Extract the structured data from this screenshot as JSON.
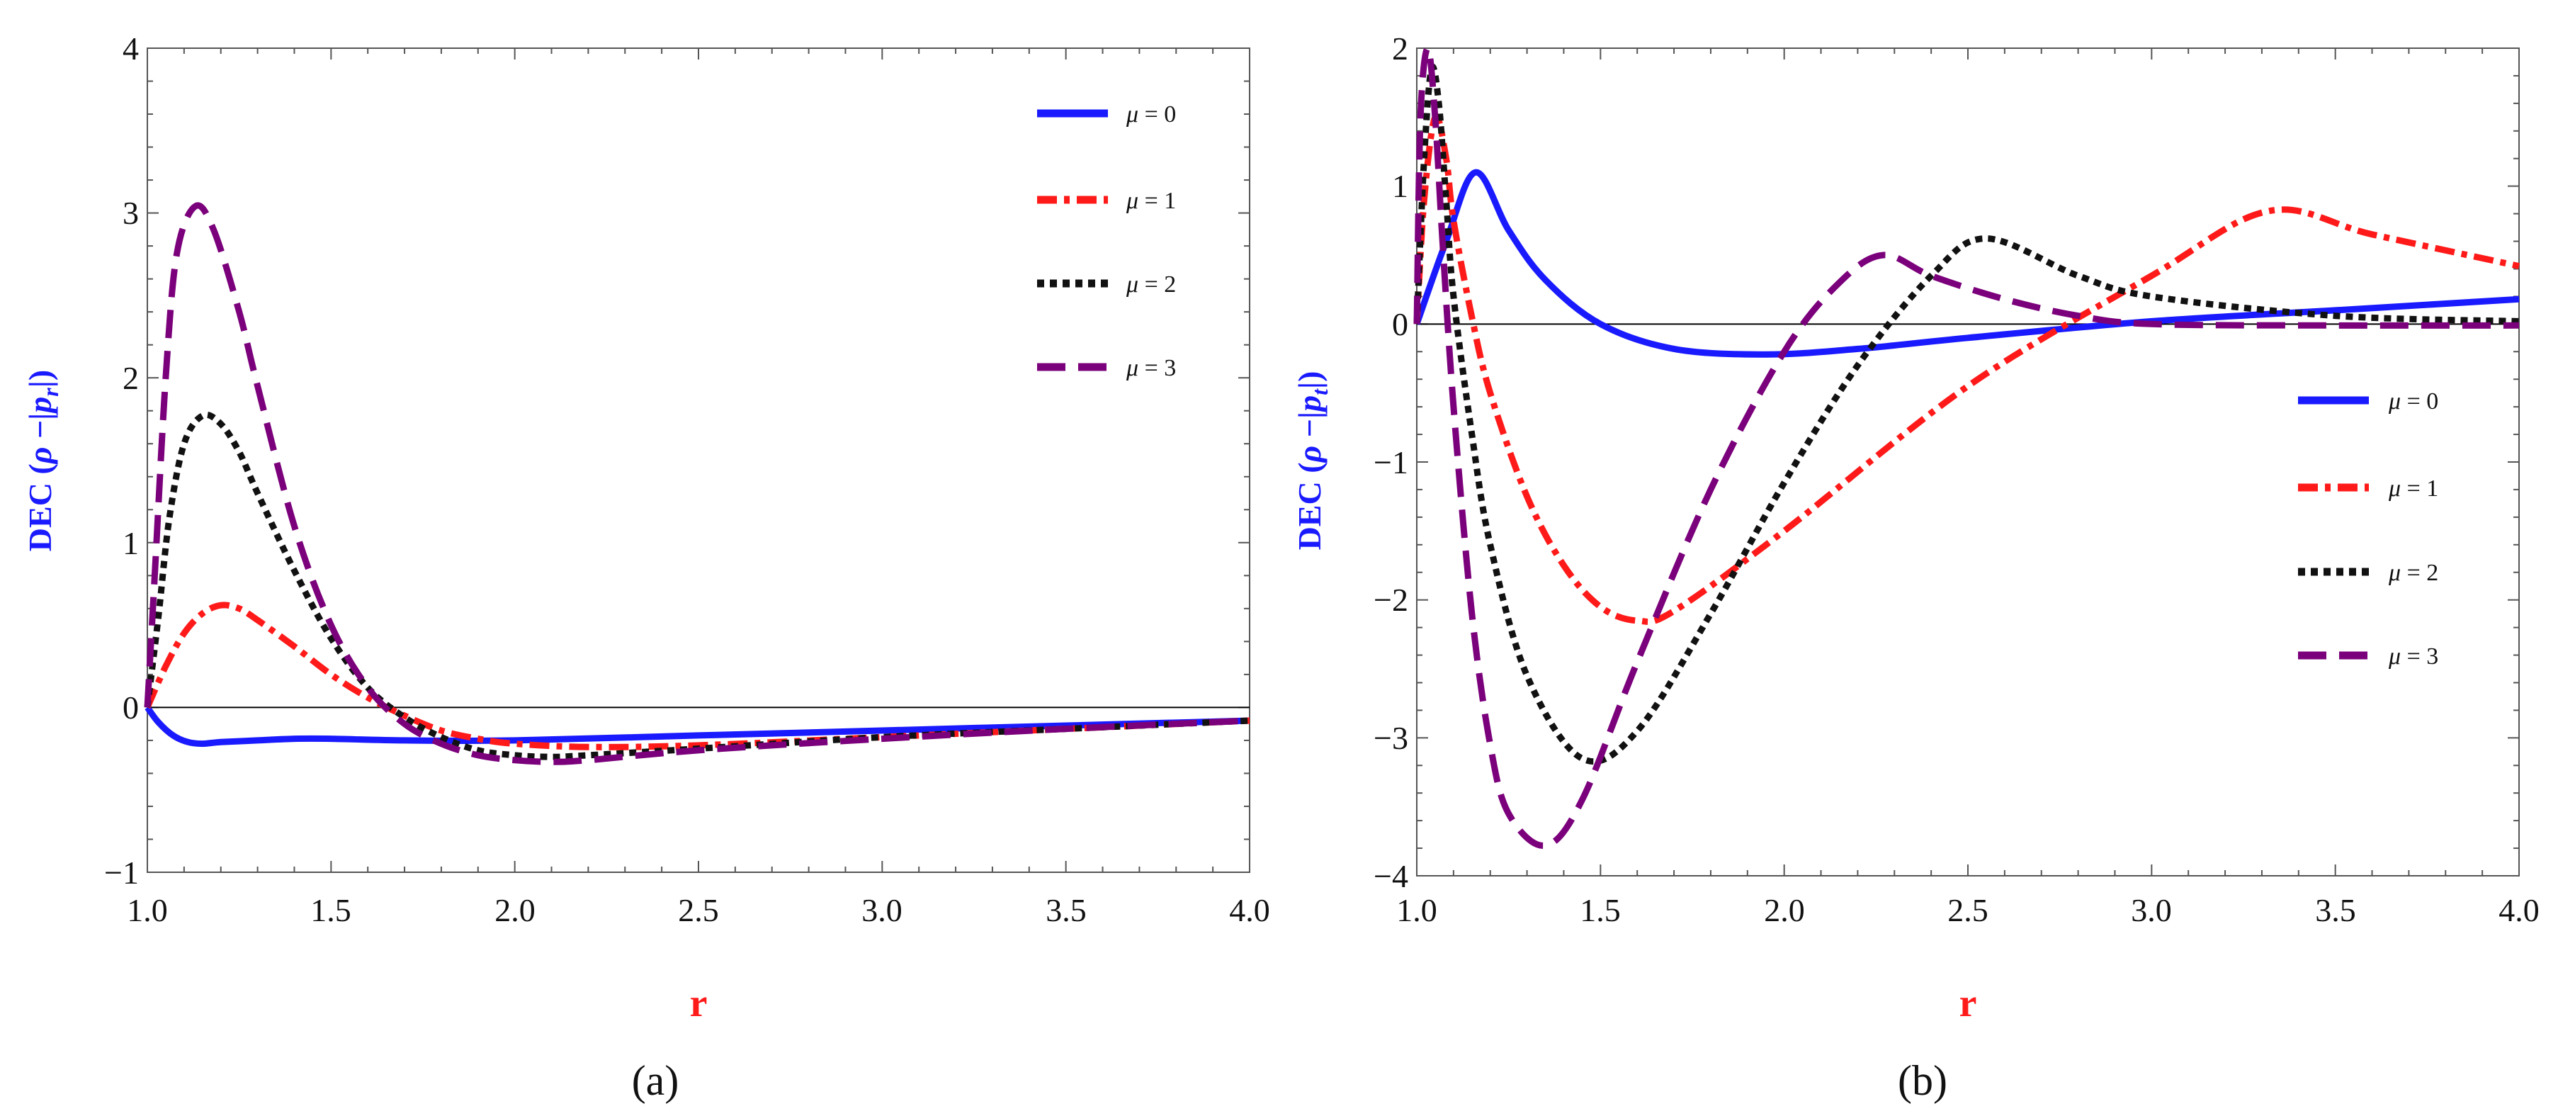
{
  "chart_data": [
    {
      "type": "line",
      "panel_label": "(a)",
      "xlabel": "r",
      "ylabel": "DEC (ρ −|pr|)",
      "ylabel_parts": {
        "prefix": "DEC (",
        "rho": "ρ",
        "mid": " −|",
        "p": "p",
        "sub": "r",
        "suffix": "|)"
      },
      "xlim": [
        1.0,
        4.0
      ],
      "ylim": [
        -1,
        4
      ],
      "x_ticks": [
        "1.0",
        "1.5",
        "2.0",
        "2.5",
        "3.0",
        "3.5",
        "4.0"
      ],
      "y_ticks": [
        "−1",
        "0",
        "1",
        "2",
        "3",
        "4"
      ],
      "legend_position": "top-right",
      "series": [
        {
          "name": "μ = 0",
          "mu": "μ",
          "eq": " = 0",
          "color": "#1a1aff",
          "dash": "solid",
          "x": [
            1.0,
            1.03,
            1.07,
            1.11,
            1.15,
            1.2,
            1.3,
            1.4,
            1.5,
            1.7,
            2.0,
            2.5,
            3.0,
            3.5,
            4.0
          ],
          "y": [
            0.0,
            -0.09,
            -0.17,
            -0.21,
            -0.22,
            -0.21,
            -0.2,
            -0.19,
            -0.19,
            -0.2,
            -0.2,
            -0.17,
            -0.14,
            -0.11,
            -0.08
          ]
        },
        {
          "name": "μ = 1",
          "mu": "μ",
          "eq": " = 1",
          "color": "#ff1a1a",
          "dash": "dashdot",
          "x": [
            1.0,
            1.05,
            1.1,
            1.15,
            1.2,
            1.25,
            1.3,
            1.4,
            1.5,
            1.6,
            1.7,
            1.8,
            1.9,
            2.0,
            2.2,
            2.5,
            3.0,
            3.5,
            4.0
          ],
          "y": [
            0.0,
            0.25,
            0.45,
            0.57,
            0.62,
            0.6,
            0.53,
            0.37,
            0.2,
            0.06,
            -0.05,
            -0.14,
            -0.19,
            -0.22,
            -0.24,
            -0.23,
            -0.18,
            -0.13,
            -0.08
          ]
        },
        {
          "name": "μ = 2",
          "mu": "μ",
          "eq": " = 2",
          "color": "#111111",
          "dash": "dotted",
          "x": [
            1.0,
            1.03,
            1.06,
            1.1,
            1.15,
            1.2,
            1.25,
            1.3,
            1.4,
            1.5,
            1.6,
            1.7,
            1.8,
            1.9,
            2.0,
            2.1,
            2.2,
            2.5,
            3.0,
            3.5,
            4.0
          ],
          "y": [
            0.0,
            0.55,
            1.15,
            1.6,
            1.77,
            1.72,
            1.55,
            1.3,
            0.83,
            0.42,
            0.12,
            -0.06,
            -0.18,
            -0.26,
            -0.29,
            -0.3,
            -0.29,
            -0.25,
            -0.18,
            -0.13,
            -0.08
          ]
        },
        {
          "name": "μ = 3",
          "mu": "μ",
          "eq": " = 3",
          "color": "#7b007b",
          "dash": "dashed",
          "x": [
            1.0,
            1.02,
            1.05,
            1.08,
            1.13,
            1.18,
            1.25,
            1.3,
            1.4,
            1.5,
            1.6,
            1.7,
            1.8,
            1.9,
            2.0,
            2.1,
            2.2,
            2.5,
            3.0,
            3.5,
            4.0
          ],
          "y": [
            0.0,
            0.8,
            2.0,
            2.75,
            3.04,
            2.9,
            2.4,
            1.95,
            1.1,
            0.5,
            0.12,
            -0.1,
            -0.22,
            -0.29,
            -0.32,
            -0.33,
            -0.32,
            -0.26,
            -0.19,
            -0.13,
            -0.08
          ]
        }
      ]
    },
    {
      "type": "line",
      "panel_label": "(b)",
      "xlabel": "r",
      "ylabel": "DEC (ρ −|pt|)",
      "ylabel_parts": {
        "prefix": "DEC (",
        "rho": "ρ",
        "mid": " −|",
        "p": "p",
        "sub": "t",
        "suffix": "|)"
      },
      "xlim": [
        1.0,
        4.0
      ],
      "ylim": [
        -4,
        2
      ],
      "x_ticks": [
        "1.0",
        "1.5",
        "2.0",
        "2.5",
        "3.0",
        "3.5",
        "4.0"
      ],
      "y_ticks": [
        "−4",
        "−3",
        "−2",
        "−1",
        "0",
        "1",
        "2"
      ],
      "legend_position": "center-right",
      "series": [
        {
          "name": "μ = 0",
          "mu": "μ",
          "eq": " = 0",
          "color": "#1a1aff",
          "dash": "solid",
          "x": [
            1.0,
            1.08,
            1.16,
            1.25,
            1.35,
            1.5,
            1.7,
            1.95,
            2.2,
            2.5,
            3.0,
            3.5,
            4.0
          ],
          "y": [
            0.0,
            0.6,
            1.1,
            0.68,
            0.32,
            0.0,
            -0.18,
            -0.22,
            -0.18,
            -0.1,
            0.02,
            0.1,
            0.18
          ]
        },
        {
          "name": "μ = 1",
          "mu": "μ",
          "eq": " = 1",
          "color": "#ff1a1a",
          "dash": "dashdot",
          "x": [
            1.0,
            1.02,
            1.05,
            1.08,
            1.1,
            1.15,
            1.2,
            1.3,
            1.4,
            1.5,
            1.6,
            1.7,
            2.0,
            2.5,
            3.0,
            3.32,
            3.6,
            4.0
          ],
          "y": [
            0.0,
            0.9,
            1.5,
            1.2,
            0.75,
            0.05,
            -0.5,
            -1.25,
            -1.75,
            -2.05,
            -2.15,
            -2.08,
            -1.5,
            -0.45,
            0.35,
            0.82,
            0.65,
            0.42
          ]
        },
        {
          "name": "μ = 2",
          "mu": "μ",
          "eq": " = 2",
          "color": "#111111",
          "dash": "dotted",
          "x": [
            1.0,
            1.02,
            1.04,
            1.06,
            1.08,
            1.1,
            1.15,
            1.2,
            1.3,
            1.45,
            1.6,
            1.8,
            2.0,
            2.2,
            2.4,
            2.55,
            2.8,
            3.0,
            3.5,
            4.0
          ],
          "y": [
            0.0,
            1.2,
            1.85,
            1.6,
            0.9,
            0.2,
            -0.8,
            -1.6,
            -2.55,
            -3.15,
            -2.95,
            -2.1,
            -1.15,
            -0.3,
            0.35,
            0.62,
            0.35,
            0.2,
            0.06,
            0.02
          ]
        },
        {
          "name": "μ = 3",
          "mu": "μ",
          "eq": " = 3",
          "color": "#7b007b",
          "dash": "dashed",
          "x": [
            1.0,
            1.01,
            1.03,
            1.05,
            1.07,
            1.1,
            1.15,
            1.2,
            1.25,
            1.35,
            1.45,
            1.6,
            1.8,
            2.0,
            2.15,
            2.27,
            2.4,
            2.6,
            2.8,
            3.0,
            3.5,
            4.0
          ],
          "y": [
            0.0,
            1.5,
            2.0,
            1.5,
            0.6,
            -0.6,
            -2.1,
            -3.05,
            -3.55,
            -3.78,
            -3.45,
            -2.45,
            -1.2,
            -0.2,
            0.3,
            0.5,
            0.35,
            0.18,
            0.06,
            0.0,
            -0.01,
            -0.01
          ]
        }
      ]
    }
  ]
}
